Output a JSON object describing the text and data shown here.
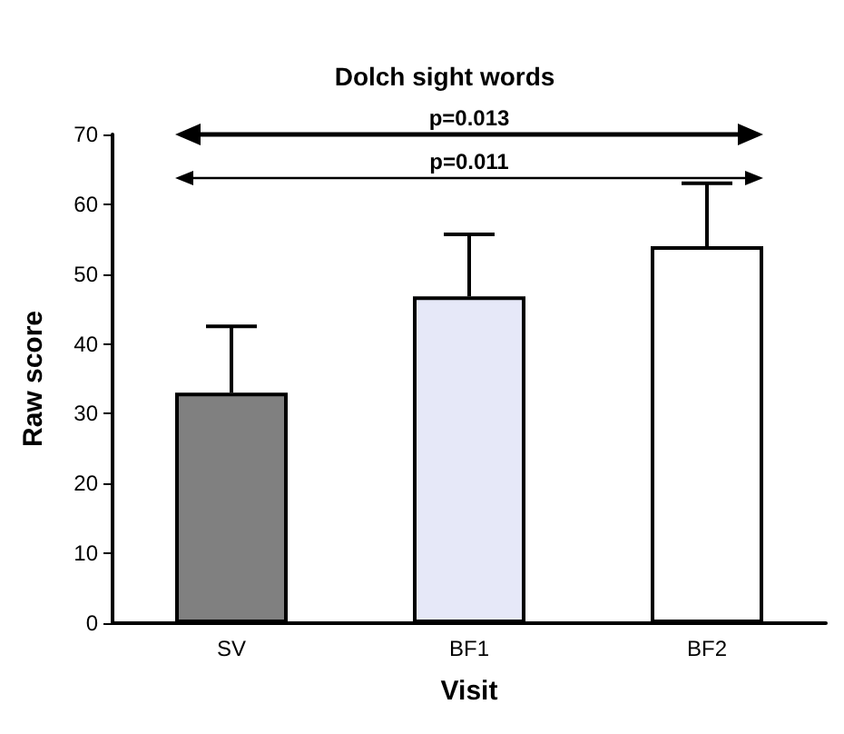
{
  "chart_data": {
    "type": "bar",
    "title": "Dolch sight words",
    "xlabel": "Visit",
    "ylabel": "Raw score",
    "categories": [
      "SV",
      "BF1",
      "BF2"
    ],
    "values": [
      33,
      46.8,
      54
    ],
    "colors": [
      "#808080",
      "#e6e8f8",
      "#ffffff"
    ],
    "errors": [
      [
        33,
        42.5
      ],
      [
        46.8,
        55.7
      ],
      [
        54,
        63
      ]
    ],
    "ylim": [
      0,
      70
    ],
    "yticks": [
      0,
      10,
      20,
      30,
      40,
      50,
      60,
      70
    ],
    "grid": false,
    "annotations": [
      "p=0.013",
      "p=0.011"
    ]
  }
}
